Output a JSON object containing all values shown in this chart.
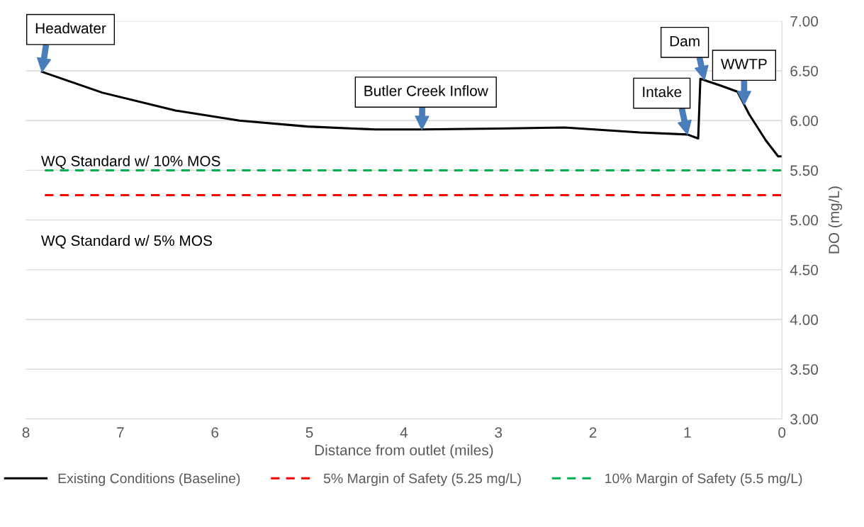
{
  "chart_data": {
    "type": "line",
    "xlabel": "Distance from outlet (miles)",
    "ylabel": "DO (mg/L)",
    "xlim": [
      8,
      0
    ],
    "xticks": [
      8,
      7,
      6,
      5,
      4,
      3,
      2,
      1,
      0
    ],
    "ylim": [
      3,
      7
    ],
    "yticks": [
      {
        "value": 3,
        "label": "3.00"
      },
      {
        "value": 3.5,
        "label": "3.50"
      },
      {
        "value": 4,
        "label": "4.00"
      },
      {
        "value": 4.5,
        "label": "4.50"
      },
      {
        "value": 5,
        "label": "5.00"
      },
      {
        "value": 5.5,
        "label": "5.50"
      },
      {
        "value": 6,
        "label": "6.00"
      },
      {
        "value": 6.5,
        "label": "6.50"
      },
      {
        "value": 7,
        "label": "7.00"
      }
    ],
    "grid": "y",
    "legend": "bottom",
    "marker": "none",
    "series": [
      {
        "name": "Existing Conditions (Baseline)",
        "color": "#000000",
        "line_style": "solid",
        "x": [
          7.83,
          7.19,
          6.41,
          5.74,
          5.02,
          4.3,
          3.81,
          3.0,
          2.3,
          1.5,
          1.0,
          0.886,
          0.863,
          0.645,
          0.47,
          0.345,
          0.17,
          0.04,
          0
        ],
        "values": [
          6.49,
          6.28,
          6.1,
          6.0,
          5.94,
          5.91,
          5.91,
          5.92,
          5.93,
          5.88,
          5.86,
          5.82,
          6.42,
          6.35,
          6.29,
          6.06,
          5.8,
          5.64,
          5.64
        ]
      },
      {
        "name": "5% Margin of Safety (5.25 mg/L)",
        "color": "#ff0000",
        "line_style": "dashed",
        "x": [
          7.8,
          0
        ],
        "values": [
          5.25,
          5.25
        ]
      },
      {
        "name": "10% Margin of Safety (5.5 mg/L)",
        "color": "#00b050",
        "line_style": "dashed",
        "x": [
          7.8,
          0
        ],
        "values": [
          5.5,
          5.5
        ]
      }
    ],
    "annotations": [
      {
        "text": "Headwater",
        "x": 7.83,
        "y": 6.49
      },
      {
        "text": "Butler Creek Inflow",
        "x": 3.81,
        "y": 5.91
      },
      {
        "text": "Intake",
        "x": 1.0,
        "y": 5.86
      },
      {
        "text": "Dam",
        "x": 0.82,
        "y": 6.41
      },
      {
        "text": "WWTP",
        "x": 0.4,
        "y": 6.16
      },
      "WQ Standard w/ 10% MOS",
      "WQ Standard w/ 5% MOS"
    ]
  }
}
